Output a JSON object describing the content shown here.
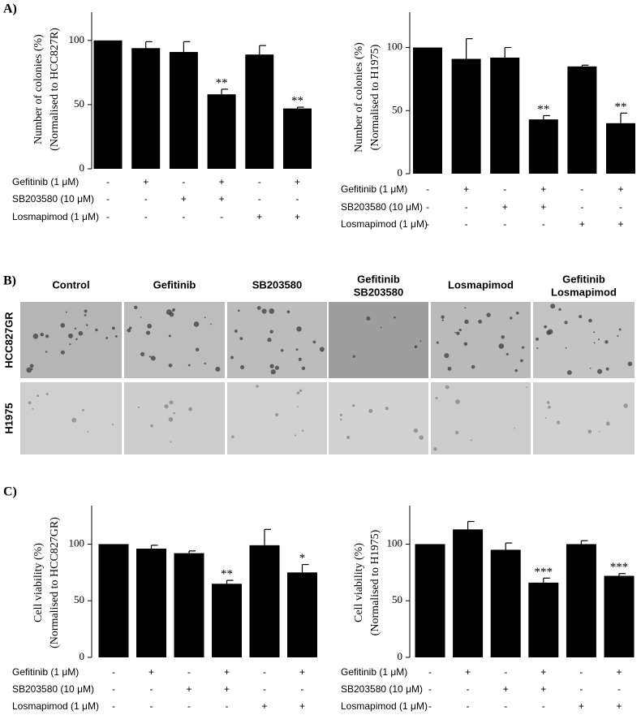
{
  "panel_labels": [
    "A)",
    "B)",
    "C)"
  ],
  "chart_data": [
    {
      "type": "bar",
      "ylabel": [
        "Number of colonies (%)",
        "(Normalised to HCC827R)"
      ],
      "values": [
        100,
        94,
        91,
        58,
        89,
        47
      ],
      "errors": [
        null,
        5,
        8,
        4,
        7,
        1
      ],
      "annotations": [
        null,
        null,
        null,
        "**",
        null,
        "**"
      ],
      "color": "#000000",
      "ylim": [
        0,
        122
      ],
      "yticks": [
        0,
        50,
        100
      ],
      "treatments": [
        {
          "name": "Gefitinib (1 μM)",
          "signs": [
            "-",
            "+",
            "-",
            "+",
            "-",
            "+"
          ]
        },
        {
          "name": "SB203580 (10 μM)",
          "signs": [
            "-",
            "-",
            "+",
            "+",
            "-",
            "-"
          ]
        },
        {
          "name": "Losmapimod (1 μM)",
          "signs": [
            "-",
            "-",
            "-",
            "-",
            "+",
            "+"
          ]
        }
      ]
    },
    {
      "type": "bar",
      "ylabel": [
        "Number of colonies (%)",
        "(Normalised to H1975)"
      ],
      "values": [
        100,
        91,
        92,
        43,
        85,
        40
      ],
      "errors": [
        null,
        16,
        8,
        3,
        1,
        8
      ],
      "annotations": [
        null,
        null,
        null,
        "**",
        null,
        "**"
      ],
      "color": "#000000",
      "ylim": [
        0,
        128
      ],
      "yticks": [
        0,
        50,
        100
      ],
      "treatments": [
        {
          "name": "Gefitinib (1 μM)",
          "signs": [
            "-",
            "+",
            "-",
            "+",
            "-",
            "+"
          ]
        },
        {
          "name": "SB203580 (10 μM)",
          "signs": [
            "-",
            "-",
            "+",
            "+",
            "-",
            "-"
          ]
        },
        {
          "name": "Losmapimod (1 μM)",
          "signs": [
            "-",
            "-",
            "-",
            "-",
            "+",
            "+"
          ]
        }
      ]
    },
    {
      "type": "bar",
      "ylabel": [
        "Cell viability (%)",
        "(Normalised to HCC827GR)"
      ],
      "values": [
        100,
        96,
        92,
        65,
        99,
        75
      ],
      "errors": [
        null,
        3,
        2,
        3,
        14,
        7
      ],
      "annotations": [
        null,
        null,
        null,
        "**",
        null,
        "*"
      ],
      "color": "#000000",
      "ylim": [
        0,
        134
      ],
      "yticks": [
        0,
        50,
        100
      ],
      "treatments": [
        {
          "name": "Gefitinib (1 μM)",
          "signs": [
            "-",
            "+",
            "-",
            "+",
            "-",
            "+"
          ]
        },
        {
          "name": "SB203580 (10 μM)",
          "signs": [
            "-",
            "-",
            "+",
            "+",
            "-",
            "-"
          ]
        },
        {
          "name": "Losmapimod (1 μM)",
          "signs": [
            "-",
            "-",
            "-",
            "-",
            "+",
            "+"
          ]
        }
      ]
    },
    {
      "type": "bar",
      "ylabel": [
        "Cell viability (%)",
        "(Normalised to H1975)"
      ],
      "values": [
        100,
        113,
        95,
        66,
        100,
        72
      ],
      "errors": [
        null,
        7,
        6,
        4,
        3,
        2
      ],
      "annotations": [
        null,
        null,
        null,
        "***",
        null,
        "***"
      ],
      "color": "#000000",
      "ylim": [
        0,
        134
      ],
      "yticks": [
        0,
        50,
        100
      ],
      "treatments": [
        {
          "name": "Gefitinib (1 μM)",
          "signs": [
            "-",
            "+",
            "-",
            "+",
            "-",
            "+"
          ]
        },
        {
          "name": "SB203580 (10 μM)",
          "signs": [
            "-",
            "-",
            "+",
            "+",
            "-",
            "-"
          ]
        },
        {
          "name": "Losmapimod (1 μM)",
          "signs": [
            "-",
            "-",
            "-",
            "-",
            "+",
            "+"
          ]
        }
      ]
    }
  ],
  "image_grid": {
    "column_headers": [
      [
        "Control"
      ],
      [
        "Gefitinib"
      ],
      [
        "SB203580"
      ],
      [
        "Gefitinib",
        "SB203580"
      ],
      [
        "Losmapimod"
      ],
      [
        "Gefitinib",
        "Losmapimod"
      ]
    ],
    "row_labels": [
      "HCC827GR",
      "H1975"
    ]
  }
}
